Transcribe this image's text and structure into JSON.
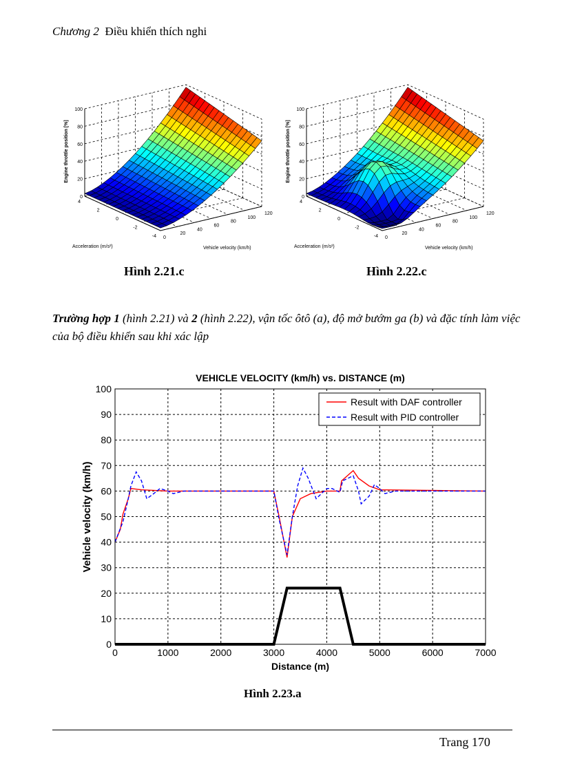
{
  "header": {
    "chapter": "Chương 2",
    "title": "Điều khiển thích nghi"
  },
  "surface_plots": [
    {
      "caption": "Hình 2.21.c",
      "zlabel": "Engine throttle position [%]",
      "xlabel": "Acceleration (m/s²)",
      "ylabel": "Vehicle velocity (km/h)",
      "z_ticks": [
        "0",
        "20",
        "40",
        "60",
        "80",
        "100"
      ],
      "accel_ticks": [
        "4",
        "2",
        "0",
        "-2",
        "-4"
      ],
      "vel_ticks": [
        "0",
        "20",
        "40",
        "60",
        "80",
        "100",
        "120"
      ]
    },
    {
      "caption": "Hình 2.22.c",
      "zlabel": "Engine throttle position [%]",
      "xlabel": "Acceleration (m/s²)",
      "ylabel": "Vehicle velocity (km/h)",
      "z_ticks": [
        "0",
        "20",
        "40",
        "60",
        "80",
        "100"
      ],
      "accel_ticks": [
        "4",
        "2",
        "0",
        "-2",
        "-4"
      ],
      "vel_ticks": [
        "0",
        "20",
        "40",
        "60",
        "80",
        "100",
        "120"
      ]
    }
  ],
  "paragraph": {
    "case1": "Trường hợp 1",
    "ref1": " (hình 2.21) và ",
    "case2": "2",
    "ref2": " (hình 2.22), vận tốc ôtô (a), độ mở bướm ga (b) và đặc tính làm việc của bộ điều khiển sau khi xác lập"
  },
  "chart_data": {
    "type": "line",
    "title": "VEHICLE VELOCITY (km/h) vs. DISTANCE (m)",
    "xlabel": "Distance (m)",
    "ylabel": "Vehicle velocity (km/h)",
    "xlim": [
      0,
      7000
    ],
    "ylim": [
      0,
      100
    ],
    "x_ticks": [
      "0",
      "1000",
      "2000",
      "3000",
      "4000",
      "5000",
      "6000",
      "7000"
    ],
    "y_ticks": [
      "0",
      "10",
      "20",
      "30",
      "40",
      "50",
      "60",
      "70",
      "80",
      "90",
      "100"
    ],
    "grid": true,
    "legend_position": "top-right",
    "caption": "Hình 2.23.a",
    "series": [
      {
        "name": "Result with DAF controller",
        "color": "#ff0000",
        "dash": "solid",
        "x": [
          0,
          100,
          150,
          250,
          300,
          500,
          1000,
          3000,
          3100,
          3250,
          3350,
          3500,
          3700,
          4000,
          4250,
          4280,
          4500,
          4600,
          4800,
          5000,
          7000
        ],
        "y": [
          40,
          45,
          51,
          57,
          61,
          60.5,
          60,
          60,
          50,
          34,
          50,
          57,
          59,
          60,
          60,
          64,
          68,
          65,
          62,
          60.5,
          60
        ]
      },
      {
        "name": "Result with PID controller",
        "color": "#0000ff",
        "dash": "dashed",
        "x": [
          0,
          150,
          250,
          300,
          400,
          500,
          600,
          700,
          850,
          1000,
          1100,
          1300,
          3000,
          3100,
          3250,
          3350,
          3450,
          3550,
          3650,
          3800,
          4000,
          4100,
          4250,
          4300,
          4500,
          4600,
          4650,
          4800,
          4900,
          5000,
          5100,
          5300,
          7000
        ],
        "y": [
          40,
          48,
          57,
          62,
          67.5,
          64,
          57,
          58.5,
          61,
          60,
          59,
          60,
          60,
          49,
          35,
          50,
          62,
          69,
          65,
          57,
          61,
          61,
          59.5,
          64,
          66,
          60,
          55,
          58,
          62.5,
          61,
          59,
          60,
          60
        ]
      },
      {
        "name": "Road profile",
        "color": "#000000",
        "dash": "solid",
        "legend": false,
        "x": [
          0,
          3000,
          3250,
          4250,
          4500,
          7000
        ],
        "y": [
          0,
          0,
          22,
          22,
          0,
          0
        ]
      }
    ]
  },
  "footer": {
    "page": "Trang 170"
  }
}
